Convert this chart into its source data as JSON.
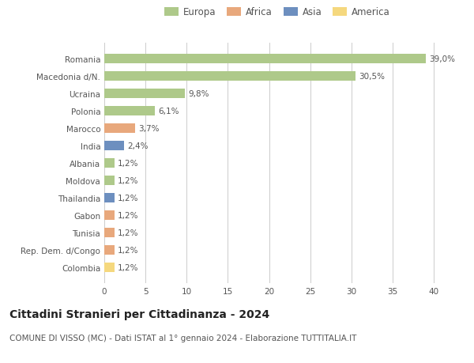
{
  "categories": [
    "Romania",
    "Macedonia d/N.",
    "Ucraina",
    "Polonia",
    "Marocco",
    "India",
    "Albania",
    "Moldova",
    "Thailandia",
    "Gabon",
    "Tunisia",
    "Rep. Dem. d/Congo",
    "Colombia"
  ],
  "values": [
    39.0,
    30.5,
    9.8,
    6.1,
    3.7,
    2.4,
    1.2,
    1.2,
    1.2,
    1.2,
    1.2,
    1.2,
    1.2
  ],
  "labels": [
    "39,0%",
    "30,5%",
    "9,8%",
    "6,1%",
    "3,7%",
    "2,4%",
    "1,2%",
    "1,2%",
    "1,2%",
    "1,2%",
    "1,2%",
    "1,2%",
    "1,2%"
  ],
  "colors": [
    "#aec98a",
    "#aec98a",
    "#aec98a",
    "#aec98a",
    "#e8a87c",
    "#6d8fbf",
    "#aec98a",
    "#aec98a",
    "#6d8fbf",
    "#e8a87c",
    "#e8a87c",
    "#e8a87c",
    "#f5d87e"
  ],
  "legend_labels": [
    "Europa",
    "Africa",
    "Asia",
    "America"
  ],
  "legend_colors": [
    "#aec98a",
    "#e8a87c",
    "#6d8fbf",
    "#f5d87e"
  ],
  "title": "Cittadini Stranieri per Cittadinanza - 2024",
  "subtitle": "COMUNE DI VISSO (MC) - Dati ISTAT al 1° gennaio 2024 - Elaborazione TUTTITALIA.IT",
  "xlim": [
    0,
    42
  ],
  "xticks": [
    0,
    5,
    10,
    15,
    20,
    25,
    30,
    35,
    40
  ],
  "bg_color": "#ffffff",
  "grid_color": "#cccccc",
  "bar_height": 0.55,
  "title_fontsize": 10,
  "subtitle_fontsize": 7.5,
  "label_fontsize": 7.5,
  "tick_fontsize": 7.5,
  "legend_fontsize": 8.5
}
